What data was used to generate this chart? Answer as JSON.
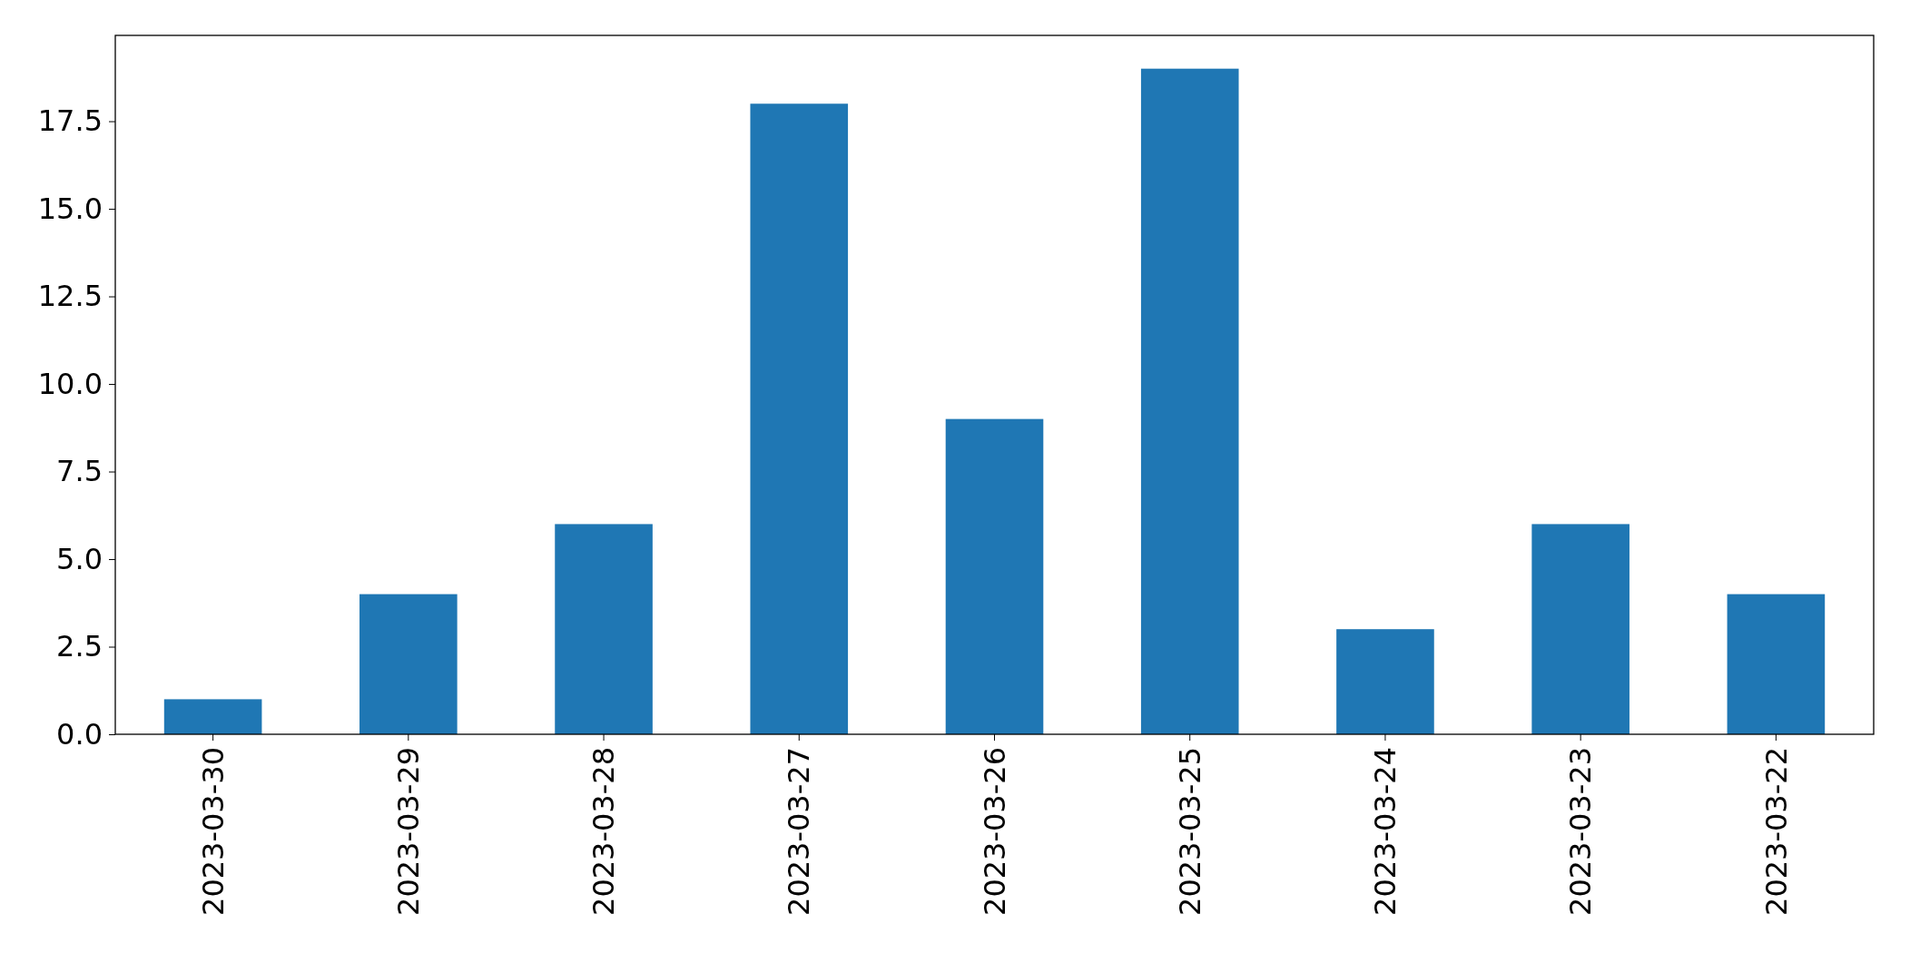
{
  "chart_data": {
    "type": "bar",
    "categories": [
      "2023-03-30",
      "2023-03-29",
      "2023-03-28",
      "2023-03-27",
      "2023-03-26",
      "2023-03-25",
      "2023-03-24",
      "2023-03-23",
      "2023-03-22"
    ],
    "values": [
      1,
      4,
      6,
      18,
      9,
      19,
      3,
      6,
      4
    ],
    "color": "#1f77b4",
    "ylim": [
      0,
      19.95
    ],
    "yticks": [
      {
        "value": 0,
        "label": "0.0"
      },
      {
        "value": 2.5,
        "label": "2.5"
      },
      {
        "value": 5,
        "label": "5.0"
      },
      {
        "value": 7.5,
        "label": "7.5"
      },
      {
        "value": 10,
        "label": "10.0"
      },
      {
        "value": 12.5,
        "label": "12.5"
      },
      {
        "value": 15,
        "label": "15.0"
      },
      {
        "value": 17.5,
        "label": "17.5"
      }
    ]
  }
}
